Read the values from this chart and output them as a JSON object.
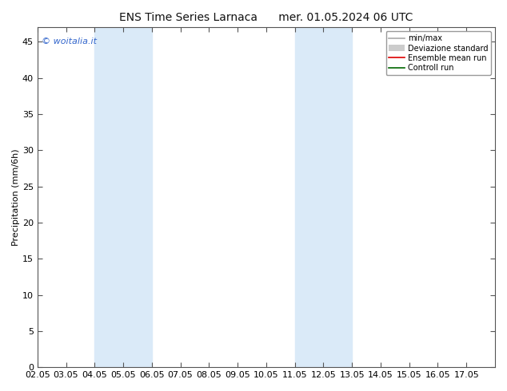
{
  "title_left": "ENS Time Series Larnaca",
  "title_right": "mer. 01.05.2024 06 UTC",
  "ylabel": "Precipitation (mm/6h)",
  "xlim": [
    0,
    16
  ],
  "ylim": [
    0,
    47
  ],
  "yticks": [
    0,
    5,
    10,
    15,
    20,
    25,
    30,
    35,
    40,
    45
  ],
  "xtick_labels": [
    "02.05",
    "03.05",
    "04.05",
    "05.05",
    "06.05",
    "07.05",
    "08.05",
    "09.05",
    "10.05",
    "11.05",
    "12.05",
    "13.05",
    "14.05",
    "15.05",
    "16.05",
    "17.05"
  ],
  "bg_color": "#ffffff",
  "plot_bg_color": "#ffffff",
  "band1_xstart": 2.0,
  "band1_xend": 4.0,
  "band2_xstart": 9.0,
  "band2_xend": 11.0,
  "band_color": "#daeaf8",
  "watermark": "© woitalia.it",
  "watermark_color": "#3366cc",
  "legend_entries": [
    "min/max",
    "Deviazione standard",
    "Ensemble mean run",
    "Controll run"
  ],
  "minmax_color": "#aaaaaa",
  "devstd_color": "#cccccc",
  "ensemble_color": "#dd0000",
  "control_color": "#006600",
  "title_fontsize": 10,
  "ylabel_fontsize": 8,
  "tick_fontsize": 8,
  "legend_fontsize": 7
}
